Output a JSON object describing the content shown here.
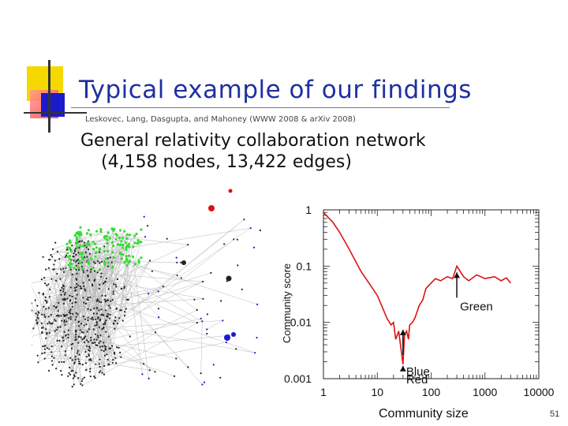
{
  "slide": {
    "title": "Typical example of our findings",
    "byline": "Leskovec, Lang, Dasgupta, and Mahoney (WWW 2008 & arXiv 2008)",
    "subtitle_line1": "General relativity collaboration network",
    "subtitle_line2": "(4,158 nodes, 13,422 edges)",
    "page_number": "51",
    "logo_colors": [
      "#f5d800",
      "#ff5a5a",
      "#1a1acc",
      "#333333"
    ]
  },
  "chart_data": {
    "type": "line",
    "xlabel": "Community size",
    "ylabel": "Community score",
    "x_scale": "log",
    "y_scale": "log",
    "xlim": [
      1,
      10000
    ],
    "ylim": [
      0.001,
      1
    ],
    "x_ticks": [
      "1",
      "10",
      "100",
      "1000",
      "10000"
    ],
    "y_ticks": [
      "1",
      "0.1",
      "0.01",
      "0.001"
    ],
    "grid": false,
    "line_color": "#dd1111",
    "series": [
      {
        "x": [
          1,
          1.2,
          1.5,
          2,
          3,
          4,
          5,
          7,
          10,
          12,
          15,
          18,
          20,
          22,
          25,
          28,
          30,
          32,
          35,
          38,
          40,
          45,
          50,
          60,
          70,
          80,
          90,
          100,
          120,
          150,
          200,
          250,
          300,
          400,
          500,
          700,
          1000,
          1500,
          2000,
          2500,
          3000
        ],
        "y": [
          0.9,
          0.75,
          0.6,
          0.4,
          0.2,
          0.12,
          0.08,
          0.05,
          0.03,
          0.02,
          0.012,
          0.009,
          0.01,
          0.005,
          0.007,
          0.003,
          0.0018,
          0.006,
          0.007,
          0.005,
          0.009,
          0.01,
          0.012,
          0.02,
          0.025,
          0.04,
          0.045,
          0.05,
          0.06,
          0.055,
          0.065,
          0.06,
          0.1,
          0.065,
          0.055,
          0.07,
          0.06,
          0.065,
          0.055,
          0.062,
          0.05
        ]
      }
    ],
    "annotations": [
      {
        "text": "Green",
        "x": 300,
        "y": 0.1
      },
      {
        "text": "Blue",
        "x": 30,
        "y": 0.009
      },
      {
        "text": "Red",
        "x": 30,
        "y": 0.0018
      }
    ]
  }
}
